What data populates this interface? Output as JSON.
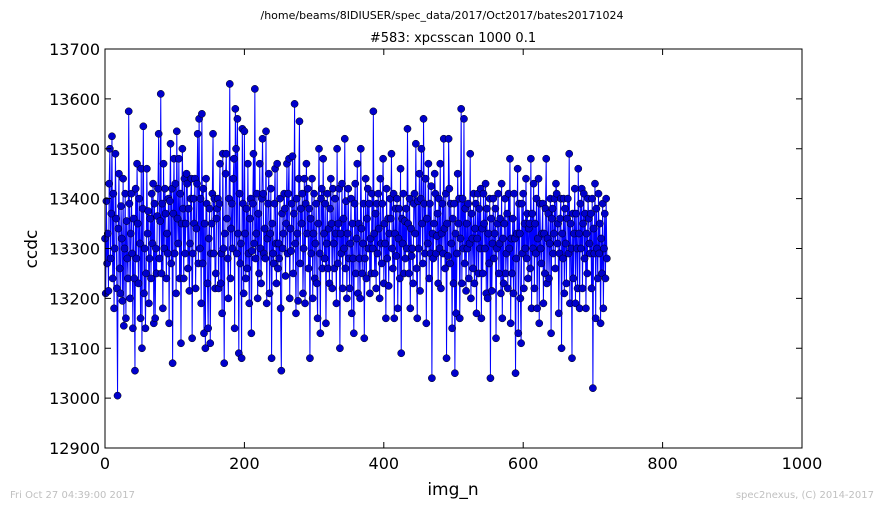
{
  "suptitle": "/home/beams/8IDIUSER/spec_data/2017/Oct2017/bates20171024",
  "footer": {
    "left": "Fri Oct 27 04:39:00 2017",
    "right": "spec2nexus, (C) 2014-2017"
  },
  "chart_data": {
    "type": "line",
    "title": "#583: xpcsscan 1000 0.1",
    "xlabel": "img_n",
    "ylabel": "ccdc",
    "xlim": [
      0,
      1000
    ],
    "ylim": [
      12900,
      13700
    ],
    "xticks": [
      "0",
      "200",
      "400",
      "600",
      "800",
      "1000"
    ],
    "yticks": [
      "12900",
      "13000",
      "13100",
      "13200",
      "13300",
      "13400",
      "13500",
      "13600",
      "13700"
    ],
    "grid": false,
    "marker": "circle",
    "line_color": "#0000ff",
    "marker_color": "#0000cc",
    "series": [
      {
        "x_start": 0,
        "x_step": 1,
        "values": [
          13320,
          13210,
          13395,
          13270,
          13330,
          13215,
          13430,
          13500,
          13280,
          13370,
          13525,
          13240,
          13410,
          13180,
          13300,
          13490,
          13360,
          13220,
          13005,
          13340,
          13450,
          13260,
          13210,
          13385,
          13320,
          13195,
          13440,
          13145,
          13300,
          13410,
          13160,
          13355,
          13280,
          13240,
          13575,
          13390,
          13200,
          13330,
          13410,
          13290,
          13140,
          13360,
          13240,
          13055,
          13420,
          13280,
          13470,
          13350,
          13230,
          13400,
          13310,
          13160,
          13460,
          13100,
          13380,
          13545,
          13210,
          13300,
          13140,
          13250,
          13460,
          13330,
          13375,
          13190,
          13280,
          13360,
          13240,
          13410,
          13310,
          13430,
          13150,
          13390,
          13160,
          13300,
          13250,
          13365,
          13420,
          13530,
          13280,
          13355,
          13610,
          13250,
          13390,
          13180,
          13470,
          13300,
          13420,
          13370,
          13240,
          13330,
          13290,
          13400,
          13150,
          13395,
          13510,
          13270,
          13420,
          13070,
          13370,
          13480,
          13290,
          13430,
          13210,
          13535,
          13360,
          13310,
          13480,
          13240,
          13410,
          13110,
          13350,
          13500,
          13380,
          13240,
          13440,
          13290,
          13350,
          13450,
          13430,
          13260,
          13380,
          13215,
          13310,
          13400,
          13440,
          13120,
          13290,
          13400,
          13350,
          13440,
          13220,
          13340,
          13430,
          13530,
          13270,
          13560,
          13300,
          13400,
          13190,
          13570,
          13270,
          13420,
          13130,
          13350,
          13100,
          13440,
          13390,
          13230,
          13140,
          13320,
          13380,
          13110,
          13290,
          13350,
          13410,
          13530,
          13290,
          13400,
          13220,
          13250,
          13360,
          13380,
          13400,
          13220,
          13390,
          13470,
          13230,
          13290,
          13170,
          13490,
          13300,
          13070,
          13330,
          13450,
          13490,
          13360,
          13280,
          13200,
          13400,
          13630,
          13240,
          13340,
          13390,
          13300,
          13440,
          13480,
          13140,
          13580,
          13500,
          13290,
          13560,
          13330,
          13090,
          13410,
          13270,
          13310,
          13080,
          13540,
          13390,
          13210,
          13535,
          13330,
          13240,
          13380,
          13260,
          13470,
          13290,
          13190,
          13360,
          13400,
          13130,
          13295,
          13390,
          13490,
          13310,
          13620,
          13280,
          13330,
          13410,
          13200,
          13370,
          13250,
          13470,
          13300,
          13230,
          13400,
          13520,
          13410,
          13290,
          13340,
          13280,
          13535,
          13190,
          13320,
          13390,
          13450,
          13210,
          13330,
          13420,
          13080,
          13350,
          13290,
          13270,
          13390,
          13460,
          13310,
          13230,
          13470,
          13260,
          13310,
          13280,
          13400,
          13180,
          13055,
          13370,
          13300,
          13330,
          13410,
          13380,
          13245,
          13350,
          13470,
          13290,
          13410,
          13480,
          13200,
          13340,
          13295,
          13390,
          13485,
          13250,
          13370,
          13590,
          13310,
          13170,
          13400,
          13330,
          13195,
          13440,
          13555,
          13270,
          13380,
          13350,
          13410,
          13210,
          13300,
          13440,
          13190,
          13390,
          13470,
          13330,
          13420,
          13260,
          13380,
          13080,
          13360,
          13290,
          13440,
          13200,
          13330,
          13410,
          13240,
          13310,
          13390,
          13230,
          13160,
          13350,
          13500,
          13290,
          13130,
          13400,
          13420,
          13260,
          13480,
          13330,
          13280,
          13390,
          13150,
          13310,
          13410,
          13260,
          13340,
          13230,
          13380,
          13440,
          13350,
          13220,
          13420,
          13310,
          13260,
          13400,
          13330,
          13190,
          13500,
          13270,
          13350,
          13420,
          13100,
          13330,
          13290,
          13430,
          13220,
          13360,
          13300,
          13520,
          13260,
          13395,
          13200,
          13330,
          13420,
          13280,
          13220,
          13310,
          13400,
          13170,
          13350,
          13280,
          13130,
          13390,
          13430,
          13250,
          13320,
          13470,
          13210,
          13350,
          13280,
          13200,
          13500,
          13340,
          13250,
          13310,
          13390,
          13120,
          13280,
          13440,
          13240,
          13360,
          13420,
          13300,
          13390,
          13210,
          13320,
          13250,
          13410,
          13300,
          13575,
          13330,
          13250,
          13370,
          13220,
          13390,
          13290,
          13410,
          13340,
          13200,
          13440,
          13310,
          13270,
          13390,
          13480,
          13230,
          13350,
          13310,
          13160,
          13420,
          13280,
          13360,
          13225,
          13330,
          13400,
          13360,
          13490,
          13300,
          13260,
          13410,
          13160,
          13330,
          13380,
          13285,
          13400,
          13180,
          13320,
          13380,
          13240,
          13460,
          13090,
          13360,
          13310,
          13410,
          13250,
          13355,
          13280,
          13380,
          13300,
          13540,
          13350,
          13250,
          13400,
          13180,
          13340,
          13285,
          13300,
          13230,
          13390,
          13410,
          13330,
          13510,
          13260,
          13160,
          13395,
          13300,
          13450,
          13215,
          13400,
          13500,
          13350,
          13270,
          13560,
          13390,
          13290,
          13440,
          13150,
          13360,
          13310,
          13470,
          13240,
          13390,
          13290,
          13425,
          13040,
          13330,
          13280,
          13350,
          13450,
          13410,
          13290,
          13325,
          13370,
          13230,
          13400,
          13300,
          13470,
          13220,
          13330,
          13390,
          13290,
          13520,
          13340,
          13260,
          13410,
          13080,
          13350,
          13285,
          13520,
          13420,
          13270,
          13390,
          13310,
          13140,
          13360,
          13230,
          13390,
          13050,
          13330,
          13170,
          13290,
          13450,
          13350,
          13400,
          13160,
          13320,
          13580,
          13230,
          13400,
          13300,
          13560,
          13270,
          13380,
          13215,
          13350,
          13300,
          13390,
          13240,
          13310,
          13490,
          13200,
          13370,
          13320,
          13260,
          13410,
          13230,
          13340,
          13390,
          13170,
          13320,
          13410,
          13250,
          13380,
          13300,
          13420,
          13160,
          13340,
          13250,
          13410,
          13350,
          13300,
          13430,
          13210,
          13380,
          13200,
          13330,
          13270,
          13400,
          13040,
          13360,
          13215,
          13310,
          13400,
          13280,
          13330,
          13380,
          13120,
          13300,
          13350,
          13410,
          13250,
          13310,
          13360,
          13210,
          13430,
          13160,
          13320,
          13230,
          13350,
          13400,
          13250,
          13290,
          13370,
          13220,
          13410,
          13300,
          13480,
          13150,
          13320,
          13250,
          13360,
          13210,
          13410,
          13320,
          13050,
          13280,
          13330,
          13460,
          13130,
          13390,
          13330,
          13200,
          13110,
          13390,
          13290,
          13410,
          13220,
          13350,
          13300,
          13440,
          13280,
          13370,
          13240,
          13340,
          13350,
          13260,
          13480,
          13180,
          13370,
          13300,
          13430,
          13220,
          13350,
          13290,
          13400,
          13180,
          13320,
          13440,
          13150,
          13390,
          13300,
          13270,
          13330,
          13390,
          13190,
          13330,
          13250,
          13380,
          13480,
          13230,
          13320,
          13370,
          13240,
          13310,
          13400,
          13130,
          13360,
          13380,
          13290,
          13330,
          13400,
          13260,
          13430,
          13410,
          13310,
          13350,
          13170,
          13290,
          13360,
          13400,
          13100,
          13330,
          13280,
          13400,
          13210,
          13380,
          13310,
          13230,
          13360,
          13400,
          13290,
          13490,
          13190,
          13350,
          13300,
          13080,
          13370,
          13240,
          13330,
          13420,
          13190,
          13370,
          13300,
          13220,
          13460,
          13330,
          13180,
          13390,
          13300,
          13420,
          13220,
          13350,
          13410,
          13280,
          13370,
          13180,
          13330,
          13250,
          13400,
          13360,
          13310,
          13290,
          13370,
          13220,
          13400,
          13020,
          13340,
          13290,
          13430,
          13160,
          13380,
          13300,
          13240,
          13410,
          13290,
          13350,
          13150,
          13320,
          13250,
          13390,
          13180,
          13300,
          13370,
          13240,
          13400,
          13280
        ]
      }
    ]
  }
}
